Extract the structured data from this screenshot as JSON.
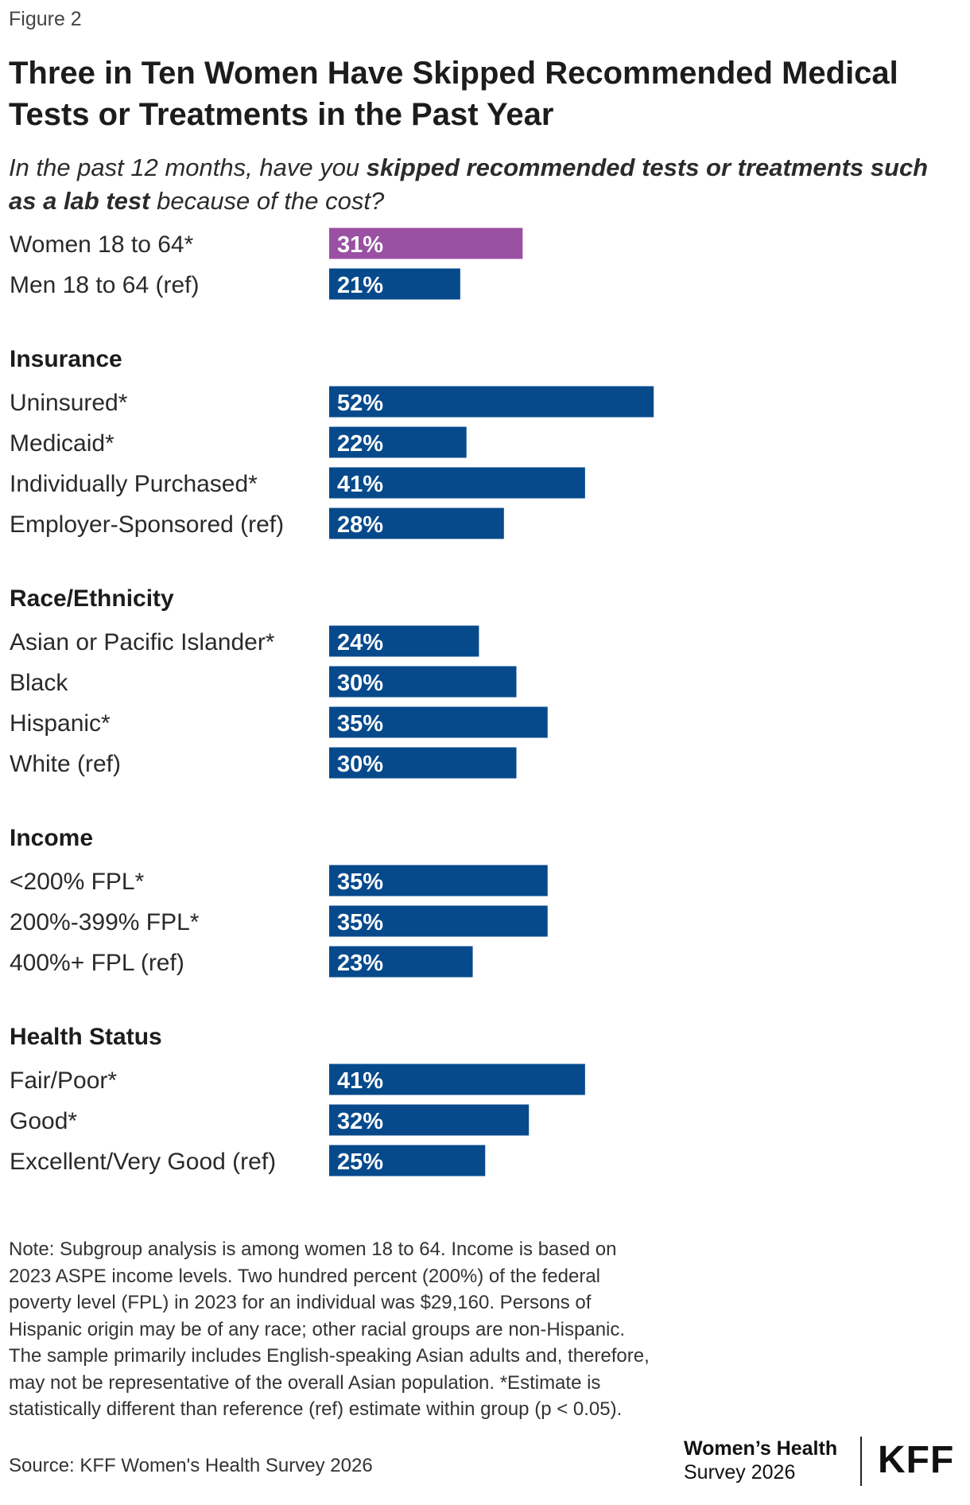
{
  "figure_label": "Figure 2",
  "title": "Three in Ten Women Have Skipped Recommended Medical Tests or Treatments in the Past Year",
  "subtitle": {
    "part1": "In the past 12 months, have you ",
    "bold": "skipped recommended tests or treatments such as a lab test",
    "part2": " because of the cost?"
  },
  "colors": {
    "highlight": "#9a50a3",
    "bar": "#074a8c",
    "bar_label": "#ffffff"
  },
  "chart_data": {
    "type": "bar",
    "orientation": "horizontal",
    "unit": "%",
    "groups": [
      {
        "heading": "",
        "items": [
          {
            "label": "Women 18 to 64*",
            "value": 31,
            "highlight": true
          },
          {
            "label": "Men 18 to 64 (ref)",
            "value": 21
          }
        ]
      },
      {
        "heading": "Insurance",
        "items": [
          {
            "label": "Uninsured*",
            "value": 52
          },
          {
            "label": "Medicaid*",
            "value": 22
          },
          {
            "label": "Individually Purchased*",
            "value": 41
          },
          {
            "label": "Employer-Sponsored (ref)",
            "value": 28
          }
        ]
      },
      {
        "heading": "Race/Ethnicity",
        "items": [
          {
            "label": "Asian or Pacific Islander*",
            "value": 24
          },
          {
            "label": "Black",
            "value": 30
          },
          {
            "label": "Hispanic*",
            "value": 35
          },
          {
            "label": "White (ref)",
            "value": 30
          }
        ]
      },
      {
        "heading": "Income",
        "items": [
          {
            "label": "<200% FPL*",
            "value": 35
          },
          {
            "label": "200%-399% FPL*",
            "value": 35
          },
          {
            "label": "400%+ FPL (ref)",
            "value": 23
          }
        ]
      },
      {
        "heading": "Health Status",
        "items": [
          {
            "label": "Fair/Poor*",
            "value": 41
          },
          {
            "label": "Good*",
            "value": 32
          },
          {
            "label": "Excellent/Very Good (ref)",
            "value": 25
          }
        ]
      }
    ]
  },
  "note": "Note: Subgroup analysis is among women 18 to 64. Income is based on 2023 ASPE income levels. Two hundred percent (200%) of the federal poverty level (FPL) in 2023 for an individual was $29,160. Persons of Hispanic origin may be of any race; other racial groups are non-Hispanic. The sample primarily includes English-speaking Asian adults and, therefore, may not be representative of the overall Asian population. *Estimate is statistically different than reference (ref) estimate within group (p < 0.05).",
  "source": "Source: KFF Women's Health Survey 2026",
  "brand": {
    "survey_line1": "Women’s Health",
    "survey_line2": "Survey 2026",
    "logo": "KFF"
  }
}
